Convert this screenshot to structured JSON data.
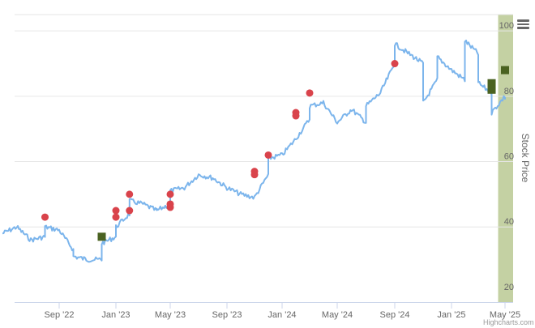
{
  "chart_data": {
    "type": "line",
    "ylabel": "Stock Price",
    "ylim": [
      17,
      105
    ],
    "y_ticks": [
      20,
      40,
      60,
      80,
      100
    ],
    "x_ticks": [
      "Sep '22",
      "Jan '23",
      "May '23",
      "Sep '23",
      "Jan '24",
      "May '24",
      "Sep '24",
      "Jan '25",
      "May '25"
    ],
    "grid": true,
    "highlight_band": {
      "from": "Apr '25",
      "to": "May '25",
      "color": "#c4d1a3"
    },
    "series": [
      {
        "type": "line",
        "color": "#7cb5ec",
        "points": [
          [
            "May '22",
            38
          ],
          [
            "Jun '22",
            40
          ],
          [
            "Jul '22",
            36
          ],
          [
            "Aug '22",
            37
          ],
          [
            "Aug '22",
            40
          ],
          [
            "Sep '22",
            39
          ],
          [
            "Oct '22",
            33
          ],
          [
            "Oct '22",
            31
          ],
          [
            "Nov '22",
            30
          ],
          [
            "Dec '22",
            30
          ],
          [
            "Dec '22",
            35
          ],
          [
            "Jan '23",
            37
          ],
          [
            "Jan '23",
            40
          ],
          [
            "Feb '23",
            44
          ],
          [
            "Feb '23",
            48
          ],
          [
            "Mar '23",
            47
          ],
          [
            "Apr '23",
            45
          ],
          [
            "Apr '23",
            45
          ],
          [
            "May '23",
            47
          ],
          [
            "May '23",
            51
          ],
          [
            "Jun '23",
            52
          ],
          [
            "Jul '23",
            56
          ],
          [
            "Aug '23",
            55
          ],
          [
            "Sep '23",
            52
          ],
          [
            "Oct '23",
            50
          ],
          [
            "Nov '23",
            49
          ],
          [
            "Dec '23",
            56
          ],
          [
            "Dec '23",
            61
          ],
          [
            "Jan '24",
            62
          ],
          [
            "Feb '24",
            67
          ],
          [
            "Mar '24",
            73
          ],
          [
            "Mar '24",
            77
          ],
          [
            "Apr '24",
            78
          ],
          [
            "May '24",
            72
          ],
          [
            "Jun '24",
            76
          ],
          [
            "Jul '24",
            72
          ],
          [
            "Jul '24",
            77
          ],
          [
            "Aug '24",
            81
          ],
          [
            "Sep '24",
            90
          ],
          [
            "Sep '24",
            96
          ],
          [
            "Oct '24",
            93
          ],
          [
            "Nov '24",
            90
          ],
          [
            "Nov '24",
            78
          ],
          [
            "Dec '24",
            85
          ],
          [
            "Dec '24",
            92
          ],
          [
            "Jan '25",
            88
          ],
          [
            "Feb '25",
            85
          ],
          [
            "Feb '25",
            97
          ],
          [
            "Mar '25",
            93
          ],
          [
            "Mar '25",
            84
          ],
          [
            "Apr '25",
            81
          ],
          [
            "Apr '25",
            84
          ],
          [
            "Apr '25",
            75
          ],
          [
            "May '25",
            80
          ],
          [
            "May '25",
            79
          ]
        ]
      },
      {
        "type": "scatter",
        "marker": "circle",
        "color": "#d9434b",
        "points": [
          [
            "Aug '22",
            43
          ],
          [
            "Jan '23",
            43
          ],
          [
            "Jan '23",
            45
          ],
          [
            "Feb '23",
            45
          ],
          [
            "Feb '23",
            50
          ],
          [
            "May '23",
            46
          ],
          [
            "May '23",
            47
          ],
          [
            "May '23",
            50
          ],
          [
            "Nov '23",
            56
          ],
          [
            "Nov '23",
            57
          ],
          [
            "Dec '23",
            62
          ],
          [
            "Feb '24",
            75
          ],
          [
            "Feb '24",
            74
          ],
          [
            "Mar '24",
            81
          ],
          [
            "Sep '24",
            90
          ]
        ]
      },
      {
        "type": "scatter",
        "marker": "square",
        "color": "#4a6221",
        "points": [
          [
            "Dec '22",
            37
          ],
          [
            "Apr '25",
            84
          ],
          [
            "Apr '25",
            82
          ],
          [
            "May '25",
            88
          ]
        ]
      }
    ]
  },
  "credits": "Highcharts.com"
}
